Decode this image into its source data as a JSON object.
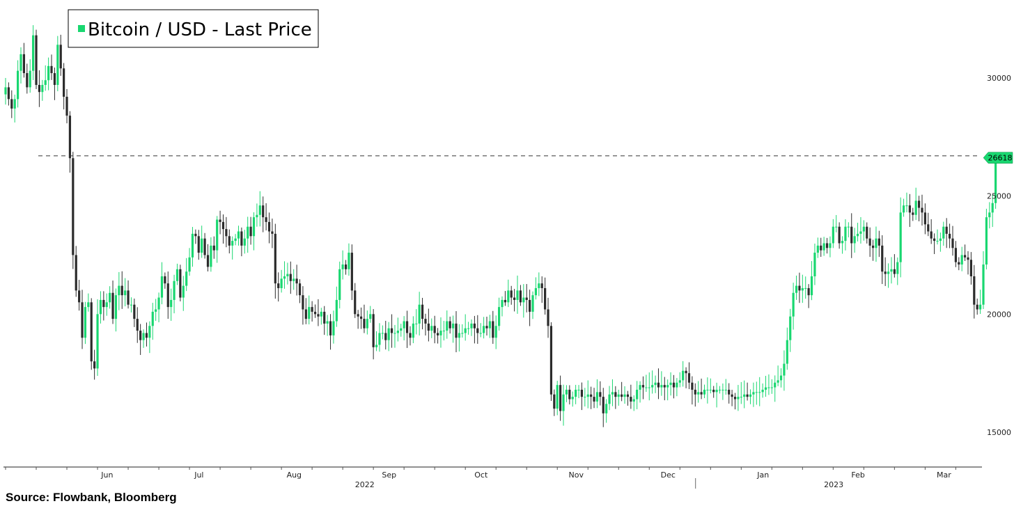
{
  "source_note": "Source: Flowbank, Bloomberg",
  "colors": {
    "up": "#19d770",
    "down": "#2b2b2b",
    "legend_swatch": "#19d770",
    "last_tag": "#19d770"
  },
  "chart_data": {
    "type": "candlestick",
    "title": "",
    "legend": [
      {
        "name": "Bitcoin / USD - Last Price",
        "color": "#19d770"
      }
    ],
    "legend_position": "top-left",
    "ylim": [
      14000,
      33000
    ],
    "yticks": [
      15000,
      20000,
      25000,
      30000
    ],
    "y_axis_side": "right",
    "x_range": [
      "2022-05-05",
      "2023-03-15"
    ],
    "x_months": [
      {
        "label": "Jun",
        "date": "2022-06-01"
      },
      {
        "label": "Jul",
        "date": "2022-07-01"
      },
      {
        "label": "Aug",
        "date": "2022-08-01"
      },
      {
        "label": "Sep",
        "date": "2022-09-01"
      },
      {
        "label": "Oct",
        "date": "2022-10-01"
      },
      {
        "label": "Nov",
        "date": "2022-11-01"
      },
      {
        "label": "Dec",
        "date": "2022-12-01"
      },
      {
        "label": "Jan",
        "date": "2023-01-01"
      },
      {
        "label": "Feb",
        "date": "2023-02-01"
      },
      {
        "label": "Mar",
        "date": "2023-03-01"
      }
    ],
    "x_years": [
      {
        "label": "2022",
        "date": "2022-09-01"
      },
      {
        "label": "2023",
        "date": "2023-02-01"
      }
    ],
    "last_price": {
      "value": 26618,
      "label": "26618"
    },
    "reference_line": {
      "value": 26700,
      "style": "dashed"
    },
    "grid": false,
    "start_date": "2022-05-05",
    "closes": [
      29600,
      29100,
      28700,
      29100,
      30300,
      31000,
      30200,
      29600,
      30300,
      31800,
      29700,
      29400,
      29700,
      29900,
      30500,
      30200,
      29700,
      31400,
      30400,
      29200,
      28400,
      26600,
      22500,
      21000,
      20500,
      19000,
      20300,
      20500,
      18000,
      17700,
      20000,
      20600,
      20300,
      20500,
      20900,
      19800,
      20800,
      21200,
      20800,
      21000,
      20400,
      20400,
      19800,
      19300,
      18900,
      19200,
      19000,
      19500,
      20100,
      20200,
      20700,
      21600,
      21300,
      20300,
      20600,
      21400,
      21900,
      20700,
      21200,
      21800,
      22400,
      23400,
      23300,
      22600,
      23200,
      22500,
      22000,
      22900,
      22700,
      24000,
      23900,
      23600,
      23300,
      22900,
      23100,
      23200,
      23500,
      22900,
      23200,
      23700,
      23300,
      24100,
      24200,
      24600,
      24100,
      23900,
      23500,
      23400,
      21300,
      21100,
      21500,
      21600,
      21700,
      21400,
      21500,
      21300,
      20800,
      20200,
      19800,
      20300,
      20100,
      20000,
      19900,
      20100,
      19600,
      19700,
      19100,
      19700,
      20600,
      21900,
      22100,
      21900,
      22600,
      21000,
      20000,
      19900,
      19800,
      19400,
      19800,
      20000,
      18600,
      18700,
      19200,
      19200,
      18900,
      19400,
      19200,
      19200,
      19300,
      19400,
      19700,
      19200,
      19000,
      19600,
      19600,
      20400,
      19800,
      19600,
      19300,
      19500,
      19200,
      19100,
      19300,
      19300,
      19700,
      19400,
      19600,
      19000,
      19200,
      19200,
      19400,
      19400,
      19600,
      19400,
      19200,
      19200,
      19500,
      19400,
      19700,
      19000,
      19500,
      20300,
      20600,
      20500,
      21000,
      20700,
      20600,
      21000,
      20500,
      20700,
      20600,
      20100,
      20800,
      21100,
      21300,
      21100,
      20200,
      19500,
      16600,
      16000,
      17000,
      15900,
      16600,
      16800,
      16400,
      16500,
      16800,
      16800,
      16500,
      16500,
      16600,
      16500,
      16300,
      16700,
      16500,
      15800,
      16200,
      16600,
      16700,
      16500,
      16600,
      16500,
      16600,
      16500,
      16300,
      16400,
      16800,
      17000,
      16900,
      16900,
      16900,
      17000,
      17100,
      16900,
      17000,
      16900,
      17000,
      17100,
      16900,
      17100,
      17200,
      17600,
      17500,
      17100,
      16800,
      16600,
      16700,
      16600,
      16800,
      16800,
      16800,
      16700,
      16800,
      16800,
      16800,
      16800,
      16600,
      16500,
      16400,
      16500,
      16500,
      16600,
      16500,
      16600,
      16700,
      16700,
      16700,
      16800,
      16900,
      16900,
      16900,
      17100,
      17200,
      17400,
      17900,
      18900,
      19900,
      20900,
      21200,
      21000,
      21100,
      21100,
      20800,
      21600,
      22600,
      22900,
      22700,
      23000,
      22800,
      23000,
      23700,
      23700,
      23000,
      23100,
      23700,
      23700,
      23000,
      23300,
      23400,
      23500,
      23700,
      23200,
      22900,
      22800,
      23200,
      22900,
      21800,
      21700,
      21800,
      21900,
      21700,
      22200,
      24300,
      24600,
      24600,
      24300,
      24200,
      24800,
      24500,
      24300,
      23800,
      23500,
      23200,
      23100,
      23100,
      23200,
      23700,
      23400,
      23200,
      22800,
      22200,
      22100,
      22500,
      22400,
      22300,
      21600,
      20400,
      20200,
      20400,
      22100,
      24100,
      24300,
      24700,
      26618
    ]
  }
}
